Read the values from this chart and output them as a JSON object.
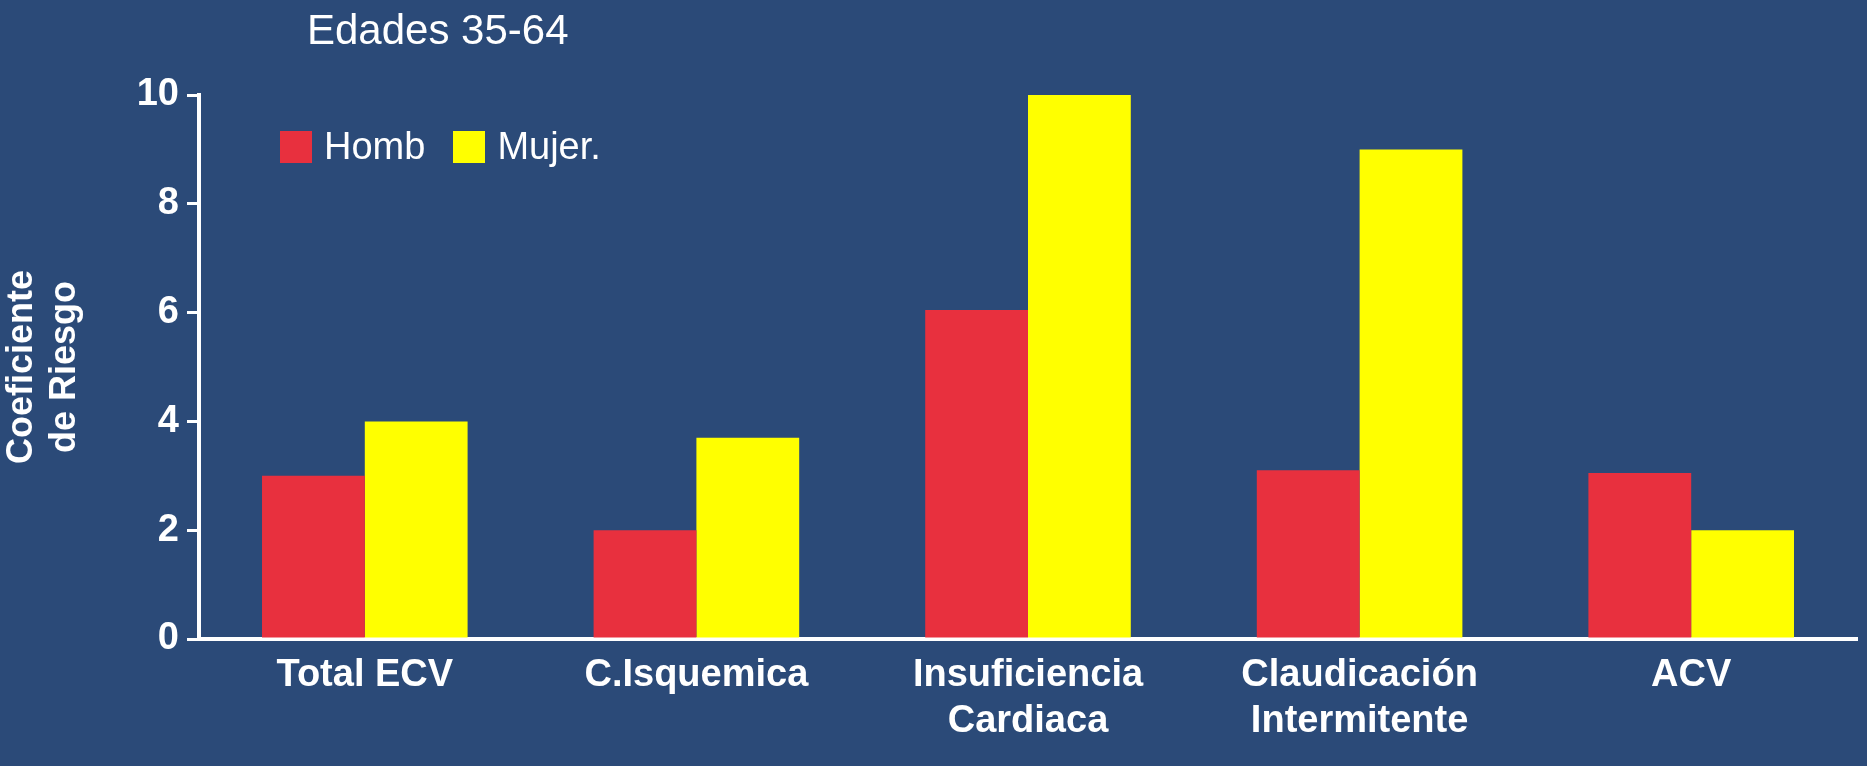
{
  "chart_data": {
    "type": "bar",
    "title": "Edades 35-64",
    "ylabel": "Coeficiente\nde Riesgo",
    "categories": [
      "Total ECV",
      "C.Isquemica",
      "Insuficiencia\nCardiaca",
      "Claudicación\nIntermitente",
      "ACV"
    ],
    "series": [
      {
        "name": "Homb",
        "color": "#e8303e",
        "values": [
          3,
          2,
          6.05,
          3.1,
          3.05
        ]
      },
      {
        "name": "Mujer.",
        "color": "#ffff00",
        "values": [
          4,
          3.7,
          10,
          9,
          2
        ]
      }
    ],
    "ylim": [
      0,
      10
    ],
    "yticks": [
      0,
      2,
      4,
      6,
      8,
      10
    ],
    "grid": false,
    "legend": "top left"
  }
}
